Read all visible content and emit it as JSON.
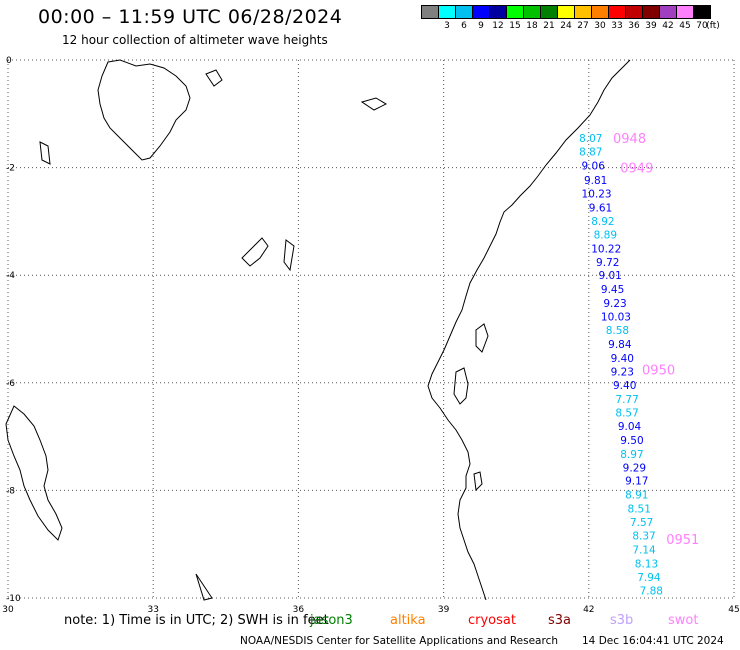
{
  "header": {
    "title": "00:00 – 11:59 UTC 06/28/2024",
    "subtitle": "12 hour collection of altimeter wave heights"
  },
  "legend": {
    "unit": "(ft)",
    "items": [
      {
        "label": "",
        "color": "#808080"
      },
      {
        "label": "3",
        "color": "#00ffff"
      },
      {
        "label": "6",
        "color": "#00c0f0"
      },
      {
        "label": "9",
        "color": "#0000ff"
      },
      {
        "label": "12",
        "color": "#0000a0"
      },
      {
        "label": "15",
        "color": "#00ff00"
      },
      {
        "label": "18",
        "color": "#00c000"
      },
      {
        "label": "21",
        "color": "#008000"
      },
      {
        "label": "24",
        "color": "#ffff00"
      },
      {
        "label": "27",
        "color": "#ffc000"
      },
      {
        "label": "30",
        "color": "#ff8000"
      },
      {
        "label": "33",
        "color": "#ff0000"
      },
      {
        "label": "36",
        "color": "#c00000"
      },
      {
        "label": "39",
        "color": "#800000"
      },
      {
        "label": "42",
        "color": "#a040c0"
      },
      {
        "label": "45",
        "color": "#ff80ff"
      },
      {
        "label": "70",
        "color": "#000000"
      }
    ]
  },
  "map": {
    "lon_range": [
      30,
      45
    ],
    "lat_range": [
      -10,
      0
    ],
    "lon_ticks": [
      "30",
      "33",
      "36",
      "39",
      "42",
      "45"
    ],
    "lat_ticks": [
      "0",
      "-2",
      "-4",
      "-6",
      "-8",
      "-10"
    ]
  },
  "passes": [
    {
      "label": "0948",
      "lon": 42.5,
      "lat": -1.45,
      "color": "#ff80ff"
    },
    {
      "label": "0949",
      "lon": 42.65,
      "lat": -2.0,
      "color": "#ff80ff"
    },
    {
      "label": "0950",
      "lon": 43.1,
      "lat": -5.75,
      "color": "#ff80ff"
    },
    {
      "label": "0951",
      "lon": 43.6,
      "lat": -8.9,
      "color": "#ff80ff"
    }
  ],
  "readings": [
    {
      "value": "8.07",
      "lon": 41.8,
      "lat": -1.45,
      "color": "#00c0f0"
    },
    {
      "value": "8.87",
      "lon": 41.8,
      "lat": -1.7,
      "color": "#00c0f0"
    },
    {
      "value": "9.06",
      "lon": 41.85,
      "lat": -1.96,
      "color": "#0000ff"
    },
    {
      "value": "9.81",
      "lon": 41.9,
      "lat": -2.23,
      "color": "#0000ff"
    },
    {
      "value": "10.23",
      "lon": 41.85,
      "lat": -2.48,
      "color": "#0000ff"
    },
    {
      "value": "9.61",
      "lon": 42.0,
      "lat": -2.74,
      "color": "#0000ff"
    },
    {
      "value": "8.92",
      "lon": 42.05,
      "lat": -2.99,
      "color": "#00c0f0"
    },
    {
      "value": "8.89",
      "lon": 42.1,
      "lat": -3.24,
      "color": "#00c0f0"
    },
    {
      "value": "10.22",
      "lon": 42.05,
      "lat": -3.5,
      "color": "#0000ff"
    },
    {
      "value": "9.72",
      "lon": 42.15,
      "lat": -3.75,
      "color": "#0000ff"
    },
    {
      "value": "9.01",
      "lon": 42.2,
      "lat": -4.0,
      "color": "#0000ff"
    },
    {
      "value": "9.45",
      "lon": 42.25,
      "lat": -4.26,
      "color": "#0000ff"
    },
    {
      "value": "9.23",
      "lon": 42.3,
      "lat": -4.52,
      "color": "#0000ff"
    },
    {
      "value": "10.03",
      "lon": 42.25,
      "lat": -4.77,
      "color": "#0000ff"
    },
    {
      "value": "8.58",
      "lon": 42.35,
      "lat": -5.02,
      "color": "#00c0f0"
    },
    {
      "value": "9.84",
      "lon": 42.4,
      "lat": -5.28,
      "color": "#0000ff"
    },
    {
      "value": "9.40",
      "lon": 42.45,
      "lat": -5.54,
      "color": "#0000ff"
    },
    {
      "value": "9.23",
      "lon": 42.45,
      "lat": -5.79,
      "color": "#0000ff"
    },
    {
      "value": "9.40",
      "lon": 42.5,
      "lat": -6.04,
      "color": "#0000ff"
    },
    {
      "value": "7.77",
      "lon": 42.55,
      "lat": -6.3,
      "color": "#00c0f0"
    },
    {
      "value": "8.57",
      "lon": 42.55,
      "lat": -6.55,
      "color": "#00c0f0"
    },
    {
      "value": "9.04",
      "lon": 42.6,
      "lat": -6.8,
      "color": "#0000ff"
    },
    {
      "value": "9.50",
      "lon": 42.65,
      "lat": -7.06,
      "color": "#0000ff"
    },
    {
      "value": "8.97",
      "lon": 42.65,
      "lat": -7.32,
      "color": "#00c0f0"
    },
    {
      "value": "9.29",
      "lon": 42.7,
      "lat": -7.57,
      "color": "#0000ff"
    },
    {
      "value": "9.17",
      "lon": 42.75,
      "lat": -7.82,
      "color": "#0000ff"
    },
    {
      "value": "8.91",
      "lon": 42.75,
      "lat": -8.08,
      "color": "#00c0f0"
    },
    {
      "value": "8.51",
      "lon": 42.8,
      "lat": -8.34,
      "color": "#00c0f0"
    },
    {
      "value": "7.57",
      "lon": 42.85,
      "lat": -8.59,
      "color": "#00c0f0"
    },
    {
      "value": "8.37",
      "lon": 42.9,
      "lat": -8.84,
      "color": "#00c0f0"
    },
    {
      "value": "7.14",
      "lon": 42.9,
      "lat": -9.1,
      "color": "#00c0f0"
    },
    {
      "value": "8.13",
      "lon": 42.95,
      "lat": -9.36,
      "color": "#00c0f0"
    },
    {
      "value": "7.94",
      "lon": 43.0,
      "lat": -9.61,
      "color": "#00c0f0"
    },
    {
      "value": "7.88",
      "lon": 43.05,
      "lat": -9.86,
      "color": "#00c0f0"
    }
  ],
  "footer": {
    "note": "note: 1) Time is in UTC; 2) SWH is in feet",
    "satellites": [
      {
        "name": "jason3",
        "color": "#008000"
      },
      {
        "name": "altika",
        "color": "#ff8000"
      },
      {
        "name": "cryosat",
        "color": "#ff0000"
      },
      {
        "name": "s3a",
        "color": "#800000"
      },
      {
        "name": "s3b",
        "color": "#c0a0ff"
      },
      {
        "name": "swot",
        "color": "#ff80ff"
      }
    ],
    "credit": "NOAA/NESDIS Center for Satellite Applications and Research",
    "timestamp": "14 Dec 16:04:41 UTC 2024"
  }
}
